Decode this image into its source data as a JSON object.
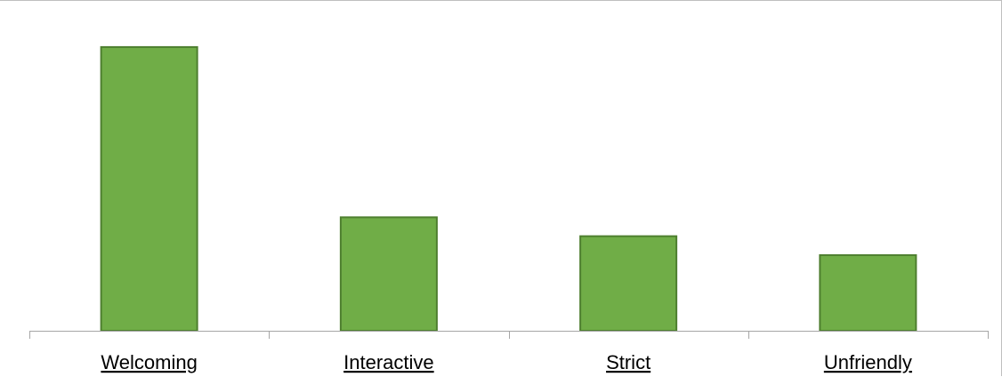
{
  "chart_data": {
    "type": "bar",
    "title": "",
    "xlabel": "",
    "ylabel": "",
    "categories": [
      "Welcoming",
      "Interactive",
      "Strict",
      "Unfriendly"
    ],
    "values": [
      150,
      60,
      50,
      40
    ],
    "ylim": [
      0,
      165
    ],
    "grid": false,
    "legend": "none",
    "category_label_style": "underline",
    "colors": {
      "bar_fill": "#70ad47",
      "bar_stroke": "#4e7f2f",
      "axis": "#a6a6a6",
      "frame": "#bfbfbf"
    }
  }
}
